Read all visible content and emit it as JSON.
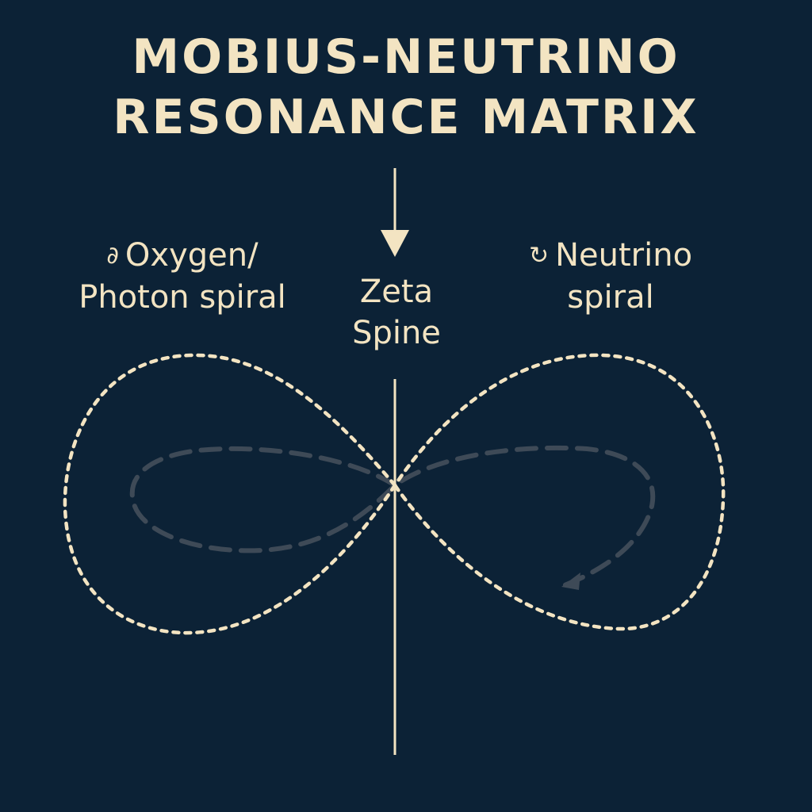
{
  "title": {
    "line1": "MOBIUS-NEUTRINO",
    "line2": "RESONANCE MATRIX"
  },
  "labels": {
    "left": {
      "icon": "oxygen-photon-glyph",
      "glyph": "∂",
      "line1": "Oxygen/",
      "line2": "Photon spiral"
    },
    "right": {
      "icon": "cycle-arrow-icon",
      "glyph": "↻",
      "line1": "Neutrino",
      "line2": "spiral"
    },
    "center": {
      "line1": "Zeta",
      "line2": "Spine"
    }
  },
  "colors": {
    "background": "#0c2236",
    "primary": "#f3e4c2",
    "secondary": "#3e4a57"
  }
}
